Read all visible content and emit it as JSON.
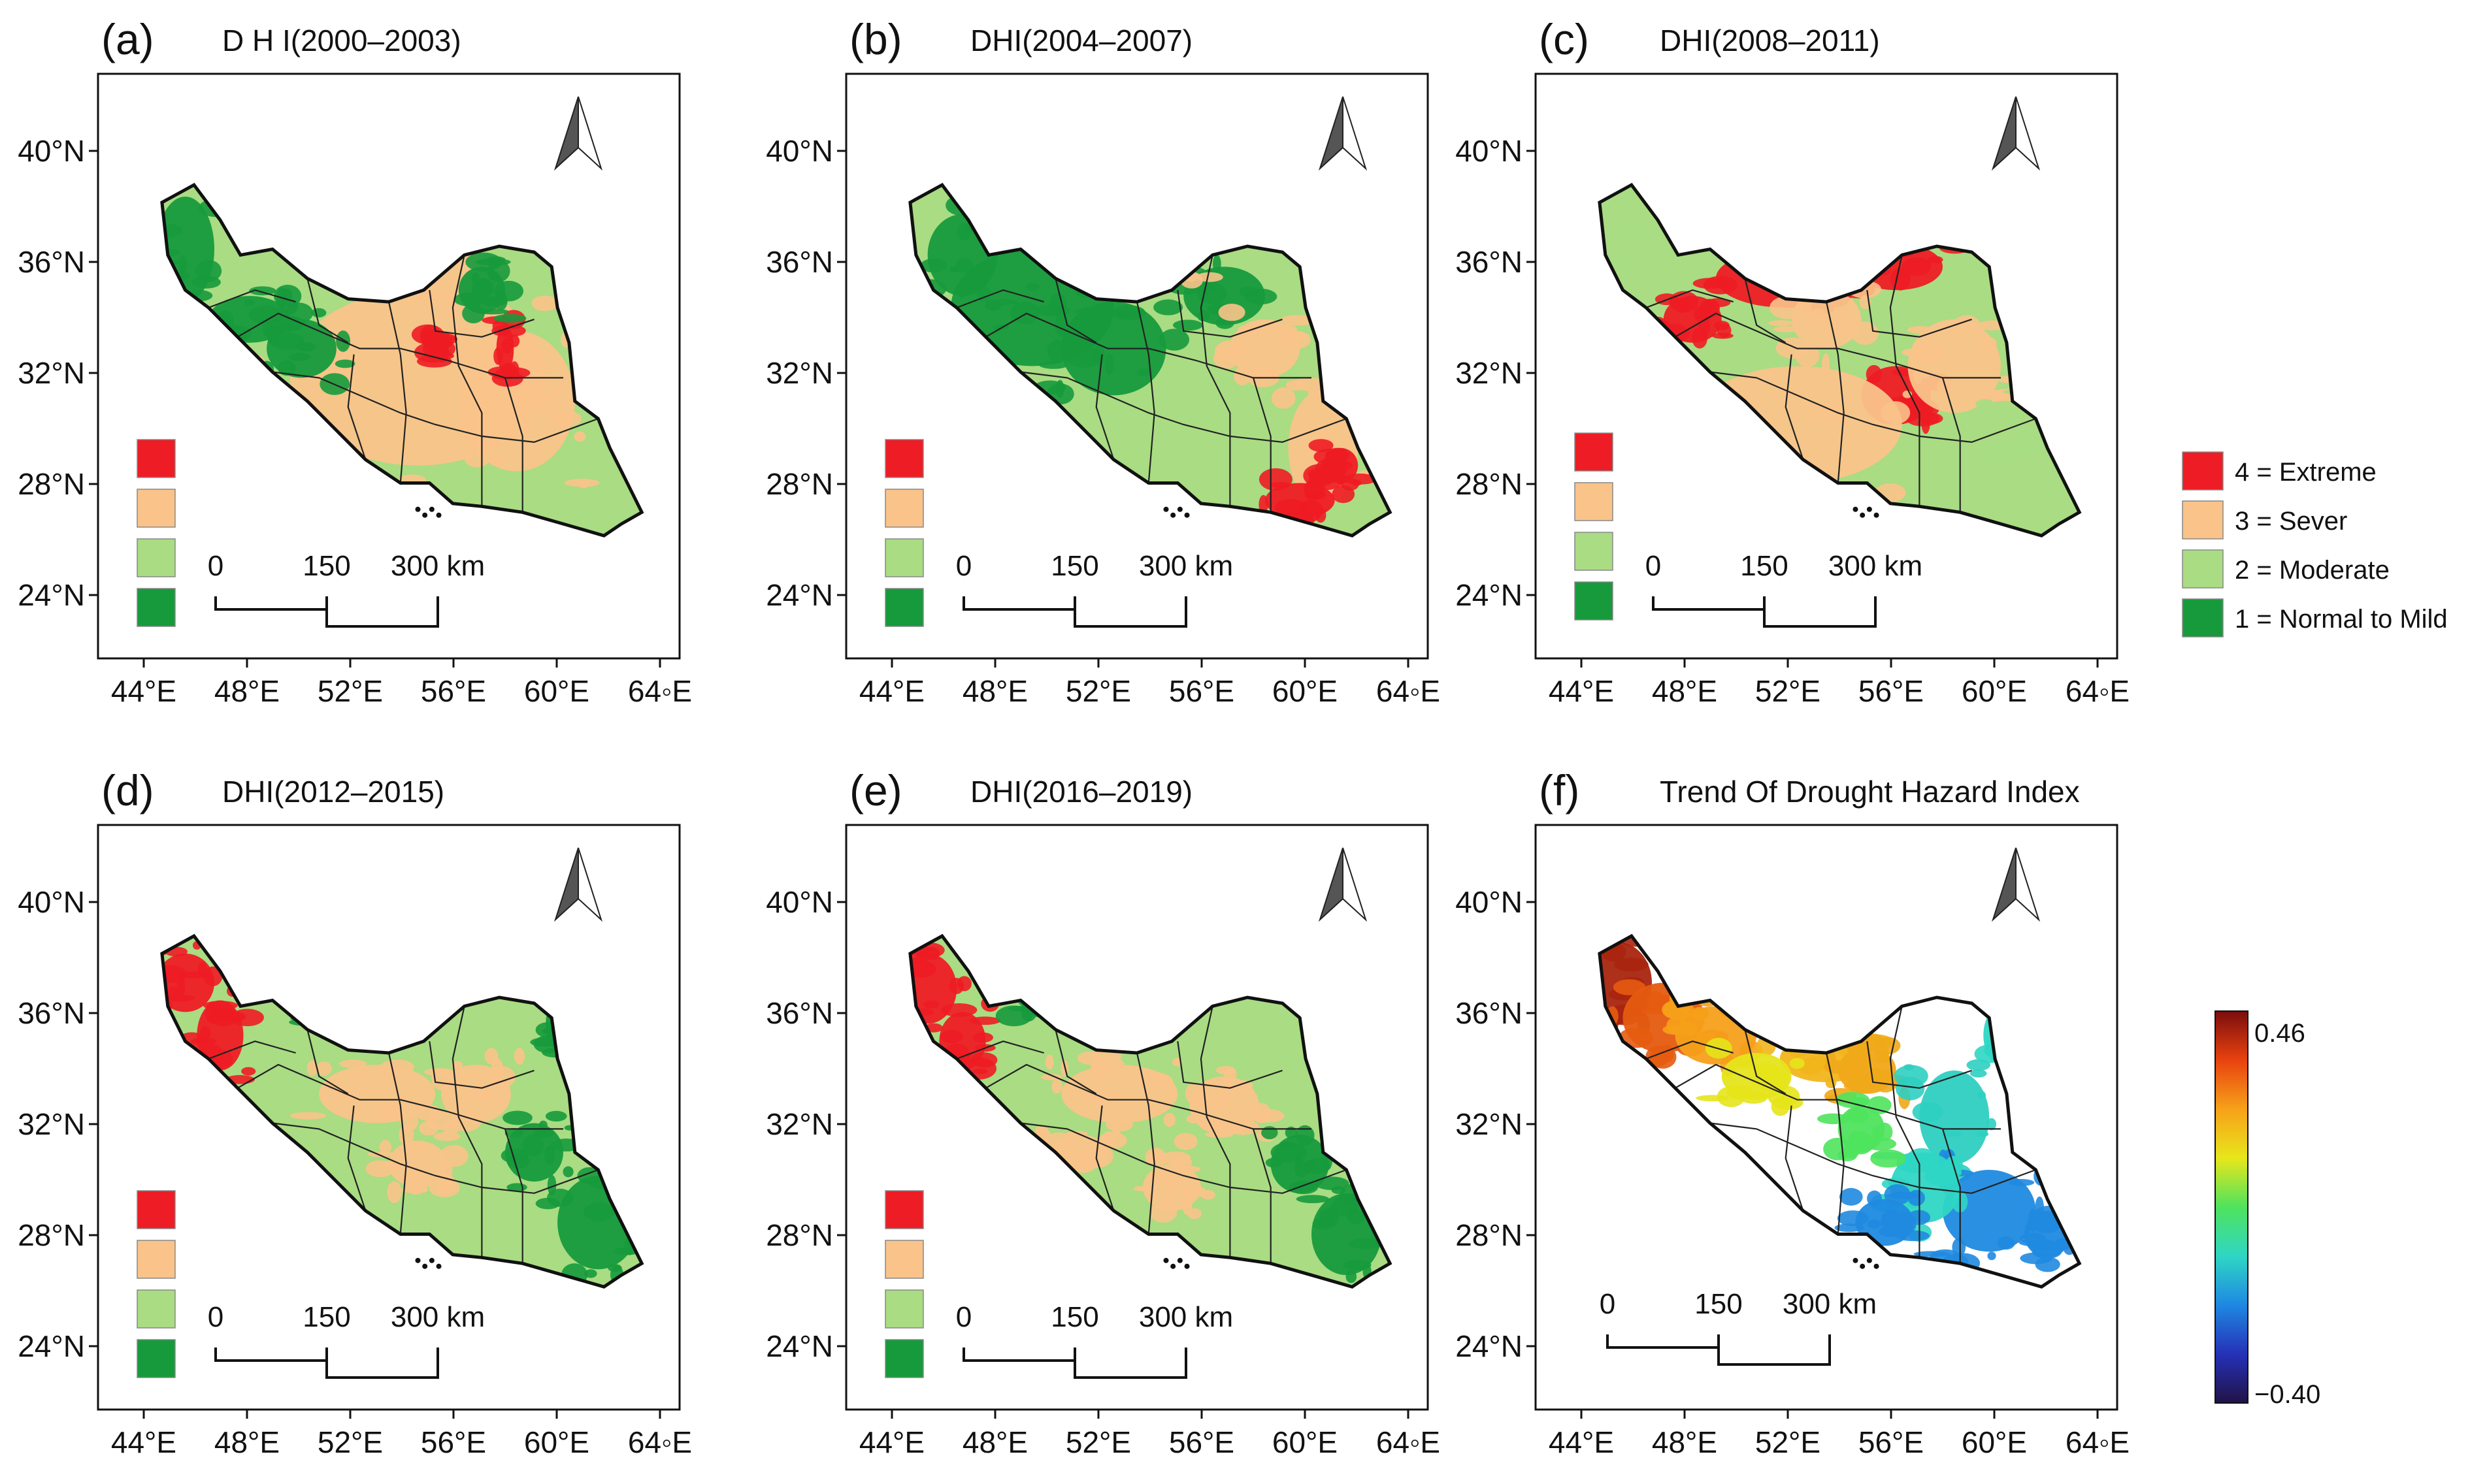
{
  "panels": [
    {
      "letter": "(a)",
      "title": "D H I(2000–2003)",
      "kind": "dhi",
      "variant": 0
    },
    {
      "letter": "(b)",
      "title": "DHI(2004–2007)",
      "kind": "dhi",
      "variant": 1
    },
    {
      "letter": "(c)",
      "title": "DHI(2008–2011)",
      "kind": "dhi",
      "variant": 2
    },
    {
      "letter": "(d)",
      "title": "DHI(2012–2015)",
      "kind": "dhi",
      "variant": 3
    },
    {
      "letter": "(e)",
      "title": "DHI(2016–2019)",
      "kind": "dhi",
      "variant": 4
    },
    {
      "letter": "(f)",
      "title": "Trend Of Drought Hazard Index",
      "kind": "trend",
      "variant": 5
    }
  ],
  "y_ticks": [
    "40°N",
    "36°N",
    "32°N",
    "28°N",
    "24°N"
  ],
  "x_ticks": [
    "44°E",
    "48°E",
    "52°E",
    "56°E",
    "60°E",
    "64◦E"
  ],
  "scale_bar": {
    "labels": [
      "0",
      "150",
      "300 km"
    ]
  },
  "class_colors": {
    "extreme": "#ee1c24",
    "severe": "#f9c38a",
    "moderate": "#a9dc83",
    "normal_mild": "#169a3c"
  },
  "legend": {
    "items": [
      {
        "label": "4 = Extreme",
        "color": "#ee1c24"
      },
      {
        "label": "3 = Sever",
        "color": "#f9c38a"
      },
      {
        "label": "2 = Moderate",
        "color": "#a9dc83"
      },
      {
        "label": "1 = Normal to Mild",
        "color": "#169a3c"
      }
    ]
  },
  "colorbar": {
    "max_label": "0.46",
    "min_label": "−0.40",
    "max": 0.46,
    "min": -0.4,
    "stops": [
      "#7b0d0d",
      "#e8420f",
      "#f7a119",
      "#e8e61b",
      "#4fe35d",
      "#2fd6c4",
      "#1e88e2",
      "#2531b8",
      "#211246"
    ]
  }
}
